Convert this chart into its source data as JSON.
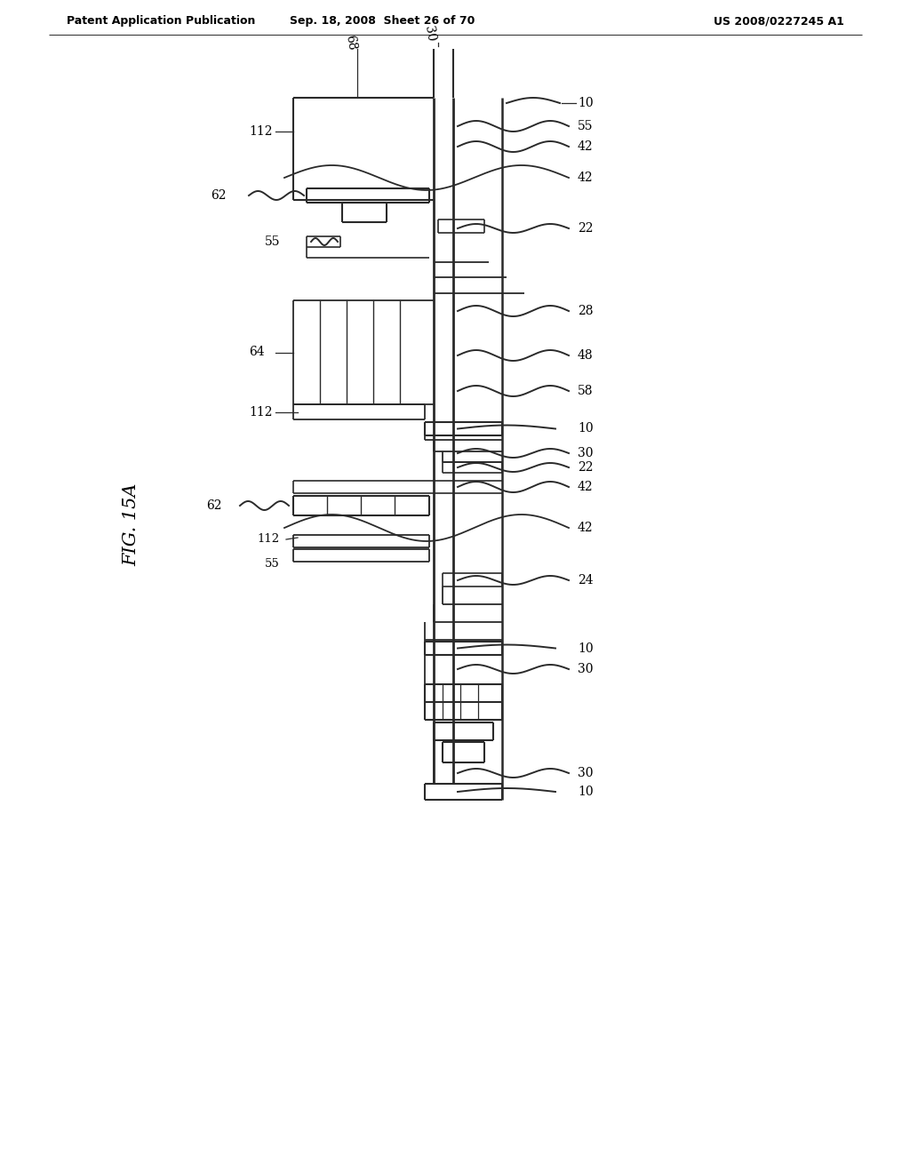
{
  "bg_color": "#ffffff",
  "lc": "#2a2a2a",
  "header_left": "Patent Application Publication",
  "header_mid": "Sep. 18, 2008  Sheet 26 of 70",
  "header_right": "US 2008/0227245 A1",
  "figure_label": "FIG. 15A"
}
